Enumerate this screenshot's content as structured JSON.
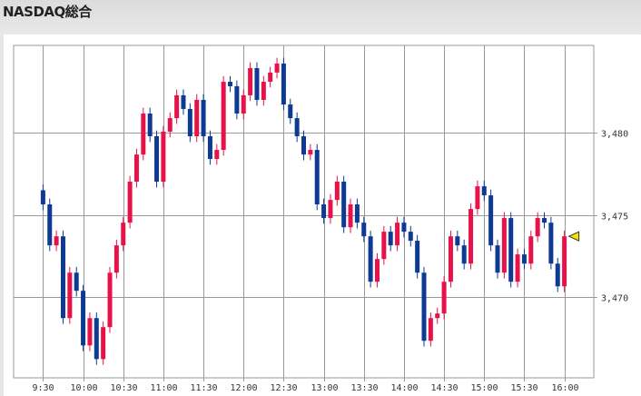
{
  "header": {
    "title": "NASDAQ総合"
  },
  "chart_data": {
    "type": "candlestick",
    "title": "NASDAQ総合",
    "interval_minutes": 5,
    "x_tick_labels": [
      "9:30",
      "10:00",
      "10:30",
      "11:00",
      "11:30",
      "12:00",
      "12:30",
      "13:00",
      "13:30",
      "14:00",
      "14:30",
      "15:00",
      "15:30",
      "16:00"
    ],
    "y_tick_labels": [
      "3,480",
      "3,475",
      "3,470"
    ],
    "y_ticks": [
      3480,
      3475,
      3470
    ],
    "ylim": [
      3465.1,
      3485.3
    ],
    "xlim": [
      "9:08",
      "16:22"
    ],
    "grid": true,
    "first_open": 3476.5,
    "close": [
      3475.64,
      3473.15,
      3473.7,
      3468.73,
      3471.49,
      3470.39,
      3467.07,
      3468.73,
      3466.24,
      3468.18,
      3471.49,
      3473.15,
      3474.53,
      3477.02,
      3478.67,
      3481.16,
      3479.78,
      3477.02,
      3480.06,
      3480.88,
      3482.27,
      3481.44,
      3479.78,
      3481.99,
      3479.78,
      3478.4,
      3478.95,
      3483.09,
      3482.82,
      3481.16,
      3482.27,
      3483.92,
      3481.99,
      3483.09,
      3483.65,
      3484.2,
      3481.71,
      3480.88,
      3479.78,
      3478.67,
      3478.95,
      3475.64,
      3474.81,
      3475.91,
      3477.02,
      3474.25,
      3475.64,
      3474.53,
      3473.7,
      3470.94,
      3472.32,
      3473.98,
      3473.15,
      3474.53,
      3473.98,
      3473.43,
      3471.49,
      3467.35,
      3468.73,
      3469.01,
      3470.94,
      3473.7,
      3473.15,
      3472.04,
      3475.36,
      3476.74,
      3476.19,
      3473.15,
      3471.49,
      3474.81,
      3470.94,
      3472.6,
      3472.04,
      3473.7,
      3474.81,
      3474.53,
      3472.04,
      3470.66,
      3473.7
    ],
    "last_value": 3473.7,
    "colors": {
      "up": "#e8124a",
      "down": "#0e3a94",
      "grid": "#999999",
      "last_marker": "#f2e600"
    }
  }
}
